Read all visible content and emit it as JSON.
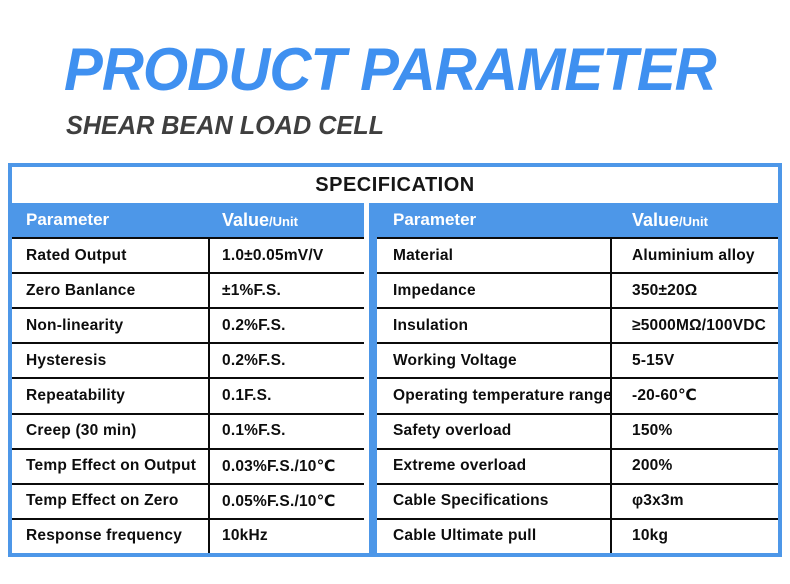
{
  "page": {
    "title": "PRODUCT PARAMETER",
    "subtitle": "SHEAR BEAN LOAD CELL"
  },
  "colors": {
    "accent_blue": "#3f90f0",
    "table_blue": "#4d97e8",
    "line_black": "#0b0b0b",
    "subtitle_gray": "#3f3f3f"
  },
  "spec": {
    "banner": "SPECIFICATION",
    "header": {
      "parameter": "Parameter",
      "value": "Value",
      "unit": "/Unit"
    },
    "left_rows": [
      {
        "parameter": "Rated Output",
        "value": "1.0±0.05mV/V"
      },
      {
        "parameter": "Zero Banlance",
        "value": "±1%F.S."
      },
      {
        "parameter": "Non-linearity",
        "value": "0.2%F.S."
      },
      {
        "parameter": "Hysteresis",
        "value": "0.2%F.S."
      },
      {
        "parameter": "Repeatability",
        "value": "0.1F.S."
      },
      {
        "parameter": "Creep (30 min)",
        "value": "0.1%F.S."
      },
      {
        "parameter": "Temp Effect on Output",
        "value": "0.03%F.S./10℃"
      },
      {
        "parameter": "Temp Effect on Zero",
        "value": "0.05%F.S./10℃"
      },
      {
        "parameter": "Response frequency",
        "value": "10kHz"
      }
    ],
    "right_rows": [
      {
        "parameter": "Material",
        "value": "Aluminium alloy"
      },
      {
        "parameter": "Impedance",
        "value": "350±20Ω"
      },
      {
        "parameter": "Insulation",
        "value": "≥5000MΩ/100VDC"
      },
      {
        "parameter": "Working Voltage",
        "value": "5-15V"
      },
      {
        "parameter": "Operating temperature range",
        "value": "-20-60℃"
      },
      {
        "parameter": "Safety overload",
        "value": "150%"
      },
      {
        "parameter": "Extreme overload",
        "value": "200%"
      },
      {
        "parameter": "Cable Specifications",
        "value": "φ3x3m"
      },
      {
        "parameter": "Cable Ultimate pull",
        "value": "10kg"
      }
    ]
  }
}
